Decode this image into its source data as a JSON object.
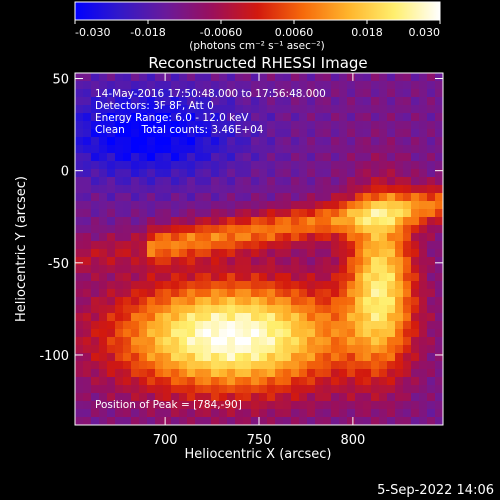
{
  "chart_data": {
    "type": "heatmap",
    "title": "Reconstructed RHESSI Image",
    "xlabel": "Heliocentric X (arcsec)",
    "ylabel": "Heliocentric Y (arcsec)",
    "xlim": [
      652,
      848
    ],
    "ylim": [
      -138,
      53
    ],
    "x_ticks": [
      700,
      750,
      800
    ],
    "y_ticks": [
      50,
      0,
      -50,
      -100
    ],
    "colorbar": {
      "range": [
        -0.03,
        0.03
      ],
      "ticks": [
        "-0.030",
        "-0.018",
        "-0.0060",
        "0.0060",
        "0.018",
        "0.030"
      ],
      "units_label": "(photons cm⁻² s⁻¹ asec⁻²)"
    },
    "colormap": [
      "#0000ff",
      "#3319c8",
      "#6a1a9a",
      "#9a0f5c",
      "#d2190e",
      "#f66a0b",
      "#ffb52c",
      "#ffef6e",
      "#ffffff"
    ],
    "info_lines": [
      "14-May-2016 17:50:48.000 to 17:56:48.000",
      "Detectors: 3F 8F, Att 0",
      "Energy Range: 6.0 - 12.0 keV",
      "Clean     Total counts: 3.46E+04"
    ],
    "peak_label": "Position of Peak = [784,-90]",
    "peak": [
      784,
      -90
    ],
    "timestamp": "5-Sep-2022 14:06"
  }
}
